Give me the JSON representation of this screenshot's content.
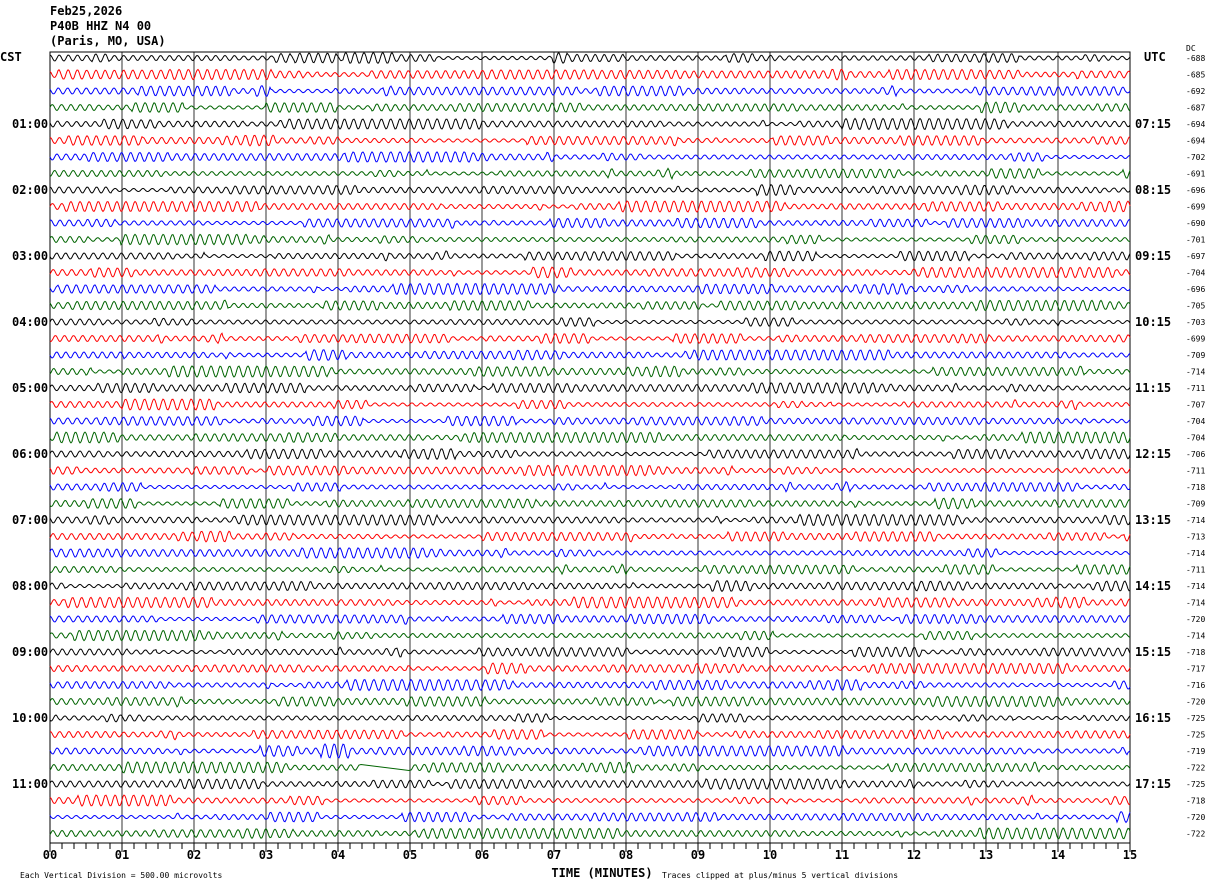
{
  "header": {
    "date": "Feb25,2026",
    "station": "P40B HHZ N4 00",
    "location": "(Paris, MO, USA)"
  },
  "chart_data": {
    "type": "line",
    "left_timezone": "CST",
    "right_timezone": "UTC",
    "dc_label": "DC",
    "left_hour_labels": [
      "01:00",
      "02:00",
      "03:00",
      "04:00",
      "05:00",
      "06:00",
      "07:00",
      "08:00",
      "09:00",
      "10:00",
      "11:00"
    ],
    "right_hour_labels": [
      "07:15",
      "08:15",
      "09:15",
      "10:15",
      "11:15",
      "12:15",
      "13:15",
      "14:15",
      "15:15",
      "16:15",
      "17:15"
    ],
    "dc_offsets": [
      -688,
      -685,
      -692,
      -687,
      -694,
      -694,
      -702,
      -691,
      -696,
      -699,
      -690,
      -701,
      -697,
      -704,
      -696,
      -705,
      -703,
      -699,
      -709,
      -714,
      -711,
      -707,
      -704,
      -704,
      -706,
      -711,
      -718,
      -709,
      -714,
      -713,
      -714,
      -711,
      -714,
      -714,
      -720,
      -714,
      -718,
      -717,
      -716,
      -720,
      -725,
      -725,
      -719,
      -722,
      -725,
      -718,
      -720,
      -722
    ],
    "trace_colors": [
      "#000000",
      "#ff0000",
      "#0000ff",
      "#006400"
    ],
    "x_ticks": [
      "00",
      "01",
      "02",
      "03",
      "04",
      "05",
      "06",
      "07",
      "08",
      "09",
      "10",
      "11",
      "12",
      "13",
      "14",
      "15"
    ],
    "xlim": [
      0,
      15
    ],
    "xlabel": "TIME (MINUTES)",
    "scale_note": "Each Vertical Division =  500.00 microvolts",
    "clip_note": "Traces clipped at plus/minus 5 vertical divisions",
    "grid": true
  }
}
